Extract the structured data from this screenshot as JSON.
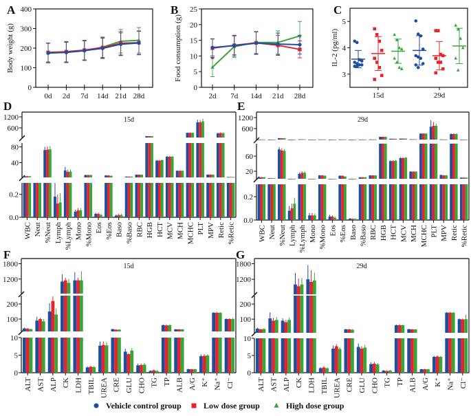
{
  "colors": {
    "vehicle": "#1f4ea0",
    "low": "#e8232a",
    "high": "#36a63a"
  },
  "legend": [
    {
      "label": "Vehicle control group",
      "marker": "circle",
      "color": "#1f4ea0"
    },
    {
      "label": "Low dose group",
      "marker": "square",
      "color": "#e8232a"
    },
    {
      "label": "High dose group",
      "marker": "triangle",
      "color": "#36a63a"
    }
  ],
  "chart_data": [
    {
      "panel": "A",
      "type": "line",
      "ylabel": "Body weight (g)",
      "categories": [
        "0d",
        "2d",
        "7d",
        "14d",
        "21d",
        "28d"
      ],
      "ylim": [
        0,
        400
      ],
      "yticks": [
        0,
        100,
        200,
        300,
        400
      ],
      "grid": false,
      "series": [
        {
          "name": "High dose group",
          "values": [
            175,
            180,
            188,
            205,
            235,
            240
          ],
          "err": [
            50,
            52,
            50,
            52,
            60,
            65
          ]
        },
        {
          "name": "Low dose group",
          "values": [
            178,
            182,
            190,
            203,
            225,
            228
          ],
          "err": [
            48,
            52,
            50,
            52,
            60,
            60
          ]
        },
        {
          "name": "Vehicle control group",
          "values": [
            175,
            178,
            187,
            199,
            220,
            226
          ],
          "err": [
            50,
            52,
            50,
            52,
            58,
            60
          ]
        }
      ]
    },
    {
      "panel": "B",
      "type": "line",
      "ylabel": "Food consumption (g)",
      "categories": [
        "2d",
        "7d",
        "14d",
        "21d",
        "28d"
      ],
      "ylim": [
        0,
        25
      ],
      "yticks": [
        0,
        5,
        10,
        15,
        20,
        25
      ],
      "grid": false,
      "annotations": [
        {
          "text": "*",
          "category": "2d"
        }
      ],
      "series": [
        {
          "name": "High dose group",
          "values": [
            6.4,
            13.0,
            14.3,
            14.3,
            16.4
          ],
          "err": [
            3.0,
            3.5,
            3.5,
            3.7,
            4.6
          ]
        },
        {
          "name": "Low dose group",
          "values": [
            12.5,
            13.4,
            14.2,
            13.4,
            12.1
          ],
          "err": [
            3.0,
            3.0,
            3.5,
            3.2,
            2.7
          ]
        },
        {
          "name": "Vehicle control group",
          "values": [
            12.7,
            13.3,
            14.1,
            13.8,
            13.6
          ],
          "err": [
            2.7,
            3.3,
            3.6,
            3.5,
            3.0
          ]
        }
      ]
    },
    {
      "panel": "C",
      "type": "scatter",
      "ylabel": "IL-2 (pg/ml)",
      "categories": [
        "15d",
        "29d"
      ],
      "ylim": [
        2.5,
        5.5
      ],
      "yticks": [
        3,
        4,
        5
      ],
      "series": [
        {
          "name": "Vehicle control group",
          "points": [
            [
              4.25,
              4.2,
              3.55,
              3.5,
              3.45,
              3.4,
              3.35,
              3.35,
              3.3,
              3.3
            ],
            [
              5.02,
              4.52,
              4.45,
              3.95,
              3.7,
              3.65,
              3.6,
              3.4,
              3.35,
              3.25
            ]
          ],
          "mean": [
            3.57,
            3.9
          ],
          "sd": [
            0.33,
            0.56
          ]
        },
        {
          "name": "Low dose group",
          "points": [
            [
              4.72,
              4.5,
              4.25,
              3.9,
              3.6,
              3.45,
              3.25,
              2.95,
              2.8
            ],
            [
              4.65,
              4.65,
              3.75,
              3.7,
              3.6,
              3.45,
              3.45,
              3.2,
              3.05
            ]
          ],
          "mean": [
            3.78,
            3.7
          ],
          "sd": [
            0.64,
            0.54
          ]
        },
        {
          "name": "High dose group",
          "points": [
            [
              4.5,
              4.3,
              4.0,
              3.95,
              3.6,
              3.45,
              3.25,
              3.2
            ],
            [
              4.85,
              4.7,
              4.35,
              4.0,
              3.6,
              3.15
            ]
          ],
          "mean": [
            3.87,
            4.07
          ],
          "sd": [
            0.46,
            0.67
          ]
        }
      ]
    },
    {
      "panel": "D",
      "type": "bar",
      "title": "15d",
      "broken_axis": true,
      "ylim_segments": [
        [
          0,
          0.3
        ],
        [
          2,
          90
        ],
        [
          75,
          1460
        ]
      ],
      "yticks": [
        {
          "v": 0,
          "label": "0.0"
        },
        {
          "v": 0.2,
          "label": "0.2"
        },
        {
          "v": 40,
          "label": "40"
        },
        {
          "v": 80,
          "label": "80"
        },
        {
          "v": 600,
          "label": "600"
        },
        {
          "v": 1200,
          "label": "1200"
        }
      ],
      "categories": [
        "WBC",
        "Neut",
        "%Neut",
        "Lymph",
        "%Lymph",
        "Mono",
        "%Mono",
        "Eos",
        "%Eos",
        "Baso",
        "%Baso",
        "RBC",
        "HGB",
        "HCT",
        "MCV",
        "MCH",
        "MCHC",
        "PLT",
        "MPV",
        "Retic",
        "%Retic"
      ],
      "series": [
        {
          "name": "Vehicle control group",
          "values": [
            5,
            1.5,
            72,
            0.18,
            20,
            0.05,
            8,
            0.03,
            7,
            0.015,
            4,
            9,
            150,
            45,
            55,
            19,
            330,
            900,
            9,
            300,
            3
          ],
          "err": [
            1,
            0.4,
            8,
            0.12,
            9,
            0.015,
            1,
            0.01,
            1,
            0.01,
            0.5,
            0.5,
            8,
            2,
            2,
            1,
            15,
            150,
            1,
            40,
            0.3
          ]
        },
        {
          "name": "Low dose group",
          "values": [
            5,
            1.5,
            73,
            0.12,
            16,
            0.06,
            8,
            0.03,
            7,
            0.02,
            4,
            9,
            150,
            45,
            55,
            19,
            330,
            900,
            9,
            320,
            3
          ],
          "err": [
            1,
            0.4,
            8,
            0.08,
            5,
            0.02,
            1,
            0.01,
            1,
            0.01,
            0.5,
            0.5,
            8,
            2,
            2,
            1,
            15,
            120,
            1,
            40,
            0.3
          ]
        },
        {
          "name": "High dose group",
          "values": [
            5,
            1.5,
            74,
            0.13,
            17,
            0.06,
            8,
            0.02,
            6,
            0.02,
            4,
            9,
            150,
            46,
            55,
            19,
            330,
            950,
            9,
            310,
            3
          ],
          "err": [
            1,
            0.4,
            8,
            0.08,
            5,
            0.02,
            1,
            0.01,
            1,
            0.01,
            0.5,
            0.5,
            8,
            2,
            2,
            1,
            15,
            150,
            1,
            40,
            0.3
          ]
        }
      ]
    },
    {
      "panel": "E",
      "type": "bar",
      "title": "29d",
      "broken_axis": true,
      "ylim_segments": [
        [
          0,
          0.306
        ],
        [
          0,
          93
        ],
        [
          0,
          1500
        ]
      ],
      "yticks": [
        {
          "v": 0,
          "label": "0.0"
        },
        {
          "v": 0.2,
          "label": "0.2"
        },
        {
          "v": 20,
          "label": "20"
        },
        {
          "v": 60,
          "label": "60"
        },
        {
          "v": 600,
          "label": "600"
        },
        {
          "v": 1200,
          "label": "1200"
        }
      ],
      "categories": [
        "WBC",
        "Neut",
        "%Neut",
        "Lymph",
        "%Lymph",
        "Mono",
        "%Mono",
        "Eos",
        "%Eos",
        "Baso",
        "%Baso",
        "RBC",
        "HGB",
        "HCT",
        "MCV",
        "MCH",
        "MCHC",
        "PLT",
        "MPV",
        "Retic",
        "%Retic"
      ],
      "series": [
        {
          "name": "Vehicle control group",
          "values": [
            4,
            1.5,
            78,
            0.08,
            13,
            0.04,
            9,
            0.03,
            8,
            0.012,
            4,
            9,
            150,
            47,
            55,
            19,
            330,
            700,
            10,
            300,
            3
          ],
          "err": [
            1,
            0.4,
            6,
            0.04,
            4,
            0.02,
            1,
            0.015,
            1,
            0.004,
            0.5,
            0.5,
            8,
            2,
            2,
            1,
            15,
            350,
            1,
            40,
            0.3
          ]
        },
        {
          "name": "Low dose group",
          "values": [
            4,
            1.5,
            75,
            0.1,
            16,
            0.04,
            9,
            0.03,
            8,
            0.01,
            4,
            9,
            150,
            47,
            55,
            19,
            330,
            750,
            9,
            300,
            3
          ],
          "err": [
            1,
            0.4,
            6,
            0.04,
            4,
            0.02,
            1,
            0.01,
            1,
            0.004,
            0.5,
            0.5,
            8,
            2,
            2,
            1,
            15,
            200,
            1,
            40,
            0.3
          ]
        },
        {
          "name": "High dose group",
          "values": [
            4,
            1.5,
            74,
            0.14,
            16,
            0.04,
            8,
            0.02,
            6,
            0.01,
            4,
            9,
            150,
            48,
            56,
            19,
            330,
            750,
            9,
            300,
            3
          ],
          "err": [
            1,
            0.4,
            5,
            0.05,
            4,
            0.015,
            1,
            0.01,
            1,
            0.004,
            0.5,
            0.5,
            8,
            2,
            2,
            1,
            15,
            120,
            1,
            40,
            0.3
          ]
        }
      ]
    },
    {
      "panel": "F",
      "type": "bar",
      "title": "15d",
      "broken_axis": true,
      "ylim_segments": [
        [
          0,
          10
        ],
        [
          18,
          255
        ],
        [
          630,
          2000
        ]
      ],
      "yticks": [
        {
          "v": 0,
          "label": "0"
        },
        {
          "v": 5,
          "label": "5"
        },
        {
          "v": 10,
          "label": "10"
        },
        {
          "v": 100,
          "label": "100"
        },
        {
          "v": 200,
          "label": "200"
        },
        {
          "v": 1200,
          "label": "1200"
        },
        {
          "v": 1800,
          "label": "1800"
        }
      ],
      "categories": [
        "ALT",
        "AST",
        "ALP",
        "CK",
        "LDH",
        "TBIL",
        "UREA",
        "CRE",
        "GLU",
        "CHO",
        "TG",
        "TP",
        "ALB",
        "A/G",
        "K⁺",
        "Na⁺",
        "Cl⁻"
      ],
      "series": [
        {
          "name": "Vehicle control group",
          "values": [
            38,
            90,
            150,
            1100,
            1150,
            1.5,
            7.7,
            33,
            6.0,
            2.1,
            0.5,
            60,
            32,
            1.0,
            4.7,
            142,
            100
          ],
          "err": [
            6,
            25,
            55,
            280,
            320,
            0.3,
            1.2,
            3,
            0.9,
            0.5,
            0.2,
            5,
            2,
            0.1,
            0.5,
            4,
            5
          ]
        },
        {
          "name": "Low dose group",
          "values": [
            36,
            100,
            220,
            1150,
            1150,
            1.7,
            7.9,
            30,
            5.3,
            2.2,
            0.7,
            58,
            32,
            1.0,
            4.8,
            142,
            100
          ],
          "err": [
            5,
            8,
            30,
            100,
            100,
            0.3,
            1.0,
            3,
            0.3,
            0.4,
            0.2,
            5,
            2,
            0.1,
            0.5,
            4,
            5
          ]
        },
        {
          "name": "High dose group",
          "values": [
            33,
            85,
            130,
            1050,
            1150,
            1.6,
            7.8,
            30,
            6.3,
            2.3,
            0.5,
            60,
            32,
            1.0,
            4.9,
            142,
            101
          ],
          "err": [
            5,
            15,
            40,
            150,
            350,
            0.3,
            0.9,
            3,
            0.7,
            0.5,
            0.2,
            5,
            2,
            0.1,
            0.4,
            4,
            5
          ]
        }
      ]
    },
    {
      "panel": "G",
      "type": "bar",
      "title": "29d",
      "broken_axis": true,
      "ylim_segments": [
        [
          0,
          10
        ],
        [
          10,
          255
        ],
        [
          620,
          2000
        ]
      ],
      "yticks": [
        {
          "v": 0,
          "label": "0"
        },
        {
          "v": 5,
          "label": "5"
        },
        {
          "v": 10,
          "label": "10"
        },
        {
          "v": 100,
          "label": "100"
        },
        {
          "v": 200,
          "label": "200"
        },
        {
          "v": 1200,
          "label": "1200"
        },
        {
          "v": 1800,
          "label": "1800"
        }
      ],
      "categories": [
        "ALT",
        "AST",
        "ALP",
        "CK",
        "LDH",
        "TBIL",
        "UREA",
        "CRE",
        "GLU",
        "CHO",
        "TG",
        "TP",
        "ALB",
        "A/G",
        "K⁺",
        "Na⁺",
        "Cl⁻"
      ],
      "series": [
        {
          "name": "Vehicle control group",
          "values": [
            38,
            105,
            90,
            1000,
            1200,
            1.3,
            7.0,
            33,
            7.5,
            2.5,
            0.6,
            60,
            34,
            1.0,
            4.6,
            143,
            100
          ],
          "err": [
            6,
            40,
            15,
            450,
            550,
            0.3,
            0.9,
            3,
            1.0,
            0.5,
            0.2,
            5,
            2,
            0.1,
            0.3,
            4,
            5
          ]
        },
        {
          "name": "Low dose group",
          "values": [
            33,
            90,
            80,
            930,
            1100,
            1.5,
            7.7,
            33,
            7.0,
            2.6,
            0.5,
            60,
            33,
            1.0,
            4.7,
            143,
            99
          ],
          "err": [
            5,
            20,
            15,
            300,
            450,
            0.4,
            0.6,
            3,
            0.7,
            0.6,
            0.2,
            5,
            2,
            0.1,
            0.3,
            4,
            5
          ]
        },
        {
          "name": "High dose group",
          "values": [
            35,
            95,
            95,
            1000,
            1150,
            1.3,
            6.9,
            31,
            7.3,
            2.4,
            0.6,
            60,
            33,
            1.0,
            4.6,
            143,
            100
          ],
          "err": [
            5,
            20,
            15,
            250,
            300,
            0.2,
            0.5,
            3,
            0.8,
            0.4,
            0.2,
            5,
            2,
            0.1,
            0.3,
            4,
            30
          ]
        }
      ]
    }
  ]
}
